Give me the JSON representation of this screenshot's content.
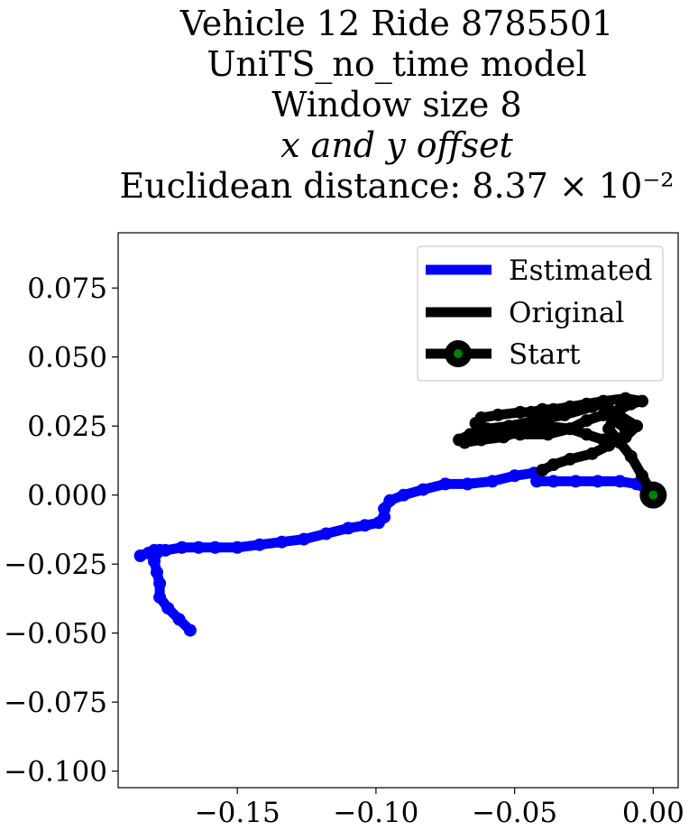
{
  "chart_data": {
    "type": "line",
    "title_lines": [
      "Vehicle 12 Ride 8785501",
      "UniTS_no_time model",
      "Window size 8",
      "x and y offset",
      "Euclidean distance: 8.37 × 10⁻²"
    ],
    "xlabel": "",
    "ylabel": "",
    "xlim": [
      -0.193,
      0.009
    ],
    "ylim": [
      -0.106,
      0.095
    ],
    "x_ticks": [
      -0.15,
      -0.1,
      -0.05,
      0.0
    ],
    "x_tick_labels": [
      "−0.15",
      "−0.10",
      "−0.05",
      "0.00"
    ],
    "y_ticks": [
      0.075,
      0.05,
      0.025,
      0.0,
      -0.025,
      -0.05,
      -0.075,
      -0.1
    ],
    "y_tick_labels": [
      "0.075",
      "0.050",
      "0.025",
      "0.000",
      "−0.025",
      "−0.050",
      "−0.075",
      "−0.100"
    ],
    "grid": false,
    "legend_position": "top-right",
    "series": [
      {
        "name": "Estimated",
        "color": "#0000ff",
        "x": [
          -0.167,
          -0.171,
          -0.175,
          -0.178,
          -0.178,
          -0.179,
          -0.18,
          -0.179,
          -0.178,
          -0.182,
          -0.185,
          -0.18,
          -0.176,
          -0.17,
          -0.164,
          -0.158,
          -0.15,
          -0.142,
          -0.134,
          -0.126,
          -0.118,
          -0.11,
          -0.104,
          -0.099,
          -0.097,
          -0.097,
          -0.095,
          -0.09,
          -0.083,
          -0.075,
          -0.067,
          -0.058,
          -0.05,
          -0.043,
          -0.042,
          -0.036,
          -0.028,
          -0.02,
          -0.012,
          -0.006,
          -0.002,
          0.0
        ],
        "y": [
          -0.049,
          -0.045,
          -0.041,
          -0.037,
          -0.032,
          -0.028,
          -0.024,
          -0.021,
          -0.02,
          -0.021,
          -0.022,
          -0.02,
          -0.02,
          -0.019,
          -0.019,
          -0.019,
          -0.019,
          -0.018,
          -0.017,
          -0.016,
          -0.014,
          -0.012,
          -0.011,
          -0.01,
          -0.008,
          -0.005,
          -0.002,
          0.0,
          0.002,
          0.004,
          0.004,
          0.005,
          0.007,
          0.008,
          0.005,
          0.005,
          0.005,
          0.005,
          0.005,
          0.004,
          0.002,
          0.0
        ]
      },
      {
        "name": "Original",
        "color": "#000000",
        "x": [
          0.0,
          -0.004,
          -0.008,
          -0.012,
          -0.016,
          -0.014,
          -0.006,
          -0.01,
          -0.018,
          -0.024,
          -0.03,
          -0.038,
          -0.046,
          -0.054,
          -0.062,
          -0.068,
          -0.07,
          -0.066,
          -0.058,
          -0.048,
          -0.038,
          -0.03,
          -0.024,
          -0.018,
          -0.012,
          -0.008,
          -0.004,
          -0.01,
          -0.018,
          -0.024,
          -0.03,
          -0.036,
          -0.04,
          -0.044,
          -0.048,
          -0.056,
          -0.062,
          -0.064,
          -0.06,
          -0.052,
          -0.042,
          -0.032,
          -0.022,
          -0.018,
          -0.016,
          -0.014,
          -0.01,
          -0.006,
          -0.01,
          -0.016,
          -0.022,
          -0.03,
          -0.036,
          -0.04
        ],
        "y": [
          0.0,
          0.007,
          0.014,
          0.019,
          0.024,
          0.03,
          0.025,
          0.021,
          0.02,
          0.022,
          0.024,
          0.025,
          0.024,
          0.021,
          0.02,
          0.019,
          0.02,
          0.022,
          0.023,
          0.022,
          0.022,
          0.024,
          0.027,
          0.029,
          0.031,
          0.033,
          0.034,
          0.035,
          0.034,
          0.033,
          0.032,
          0.031,
          0.031,
          0.03,
          0.03,
          0.029,
          0.028,
          0.026,
          0.024,
          0.025,
          0.027,
          0.029,
          0.032,
          0.033,
          0.031,
          0.027,
          0.024,
          0.025,
          0.022,
          0.018,
          0.015,
          0.013,
          0.011,
          0.009
        ]
      }
    ],
    "start_point": {
      "name": "Start",
      "x": 0.0,
      "y": 0.0,
      "outer_color": "#000000",
      "inner_color": "#008000"
    },
    "legend": [
      {
        "label": "Estimated",
        "kind": "line",
        "color": "#0000ff"
      },
      {
        "label": "Original",
        "kind": "line",
        "color": "#000000"
      },
      {
        "label": "Start",
        "kind": "marker",
        "color": "#000000",
        "marker_color": "#008000"
      }
    ]
  }
}
